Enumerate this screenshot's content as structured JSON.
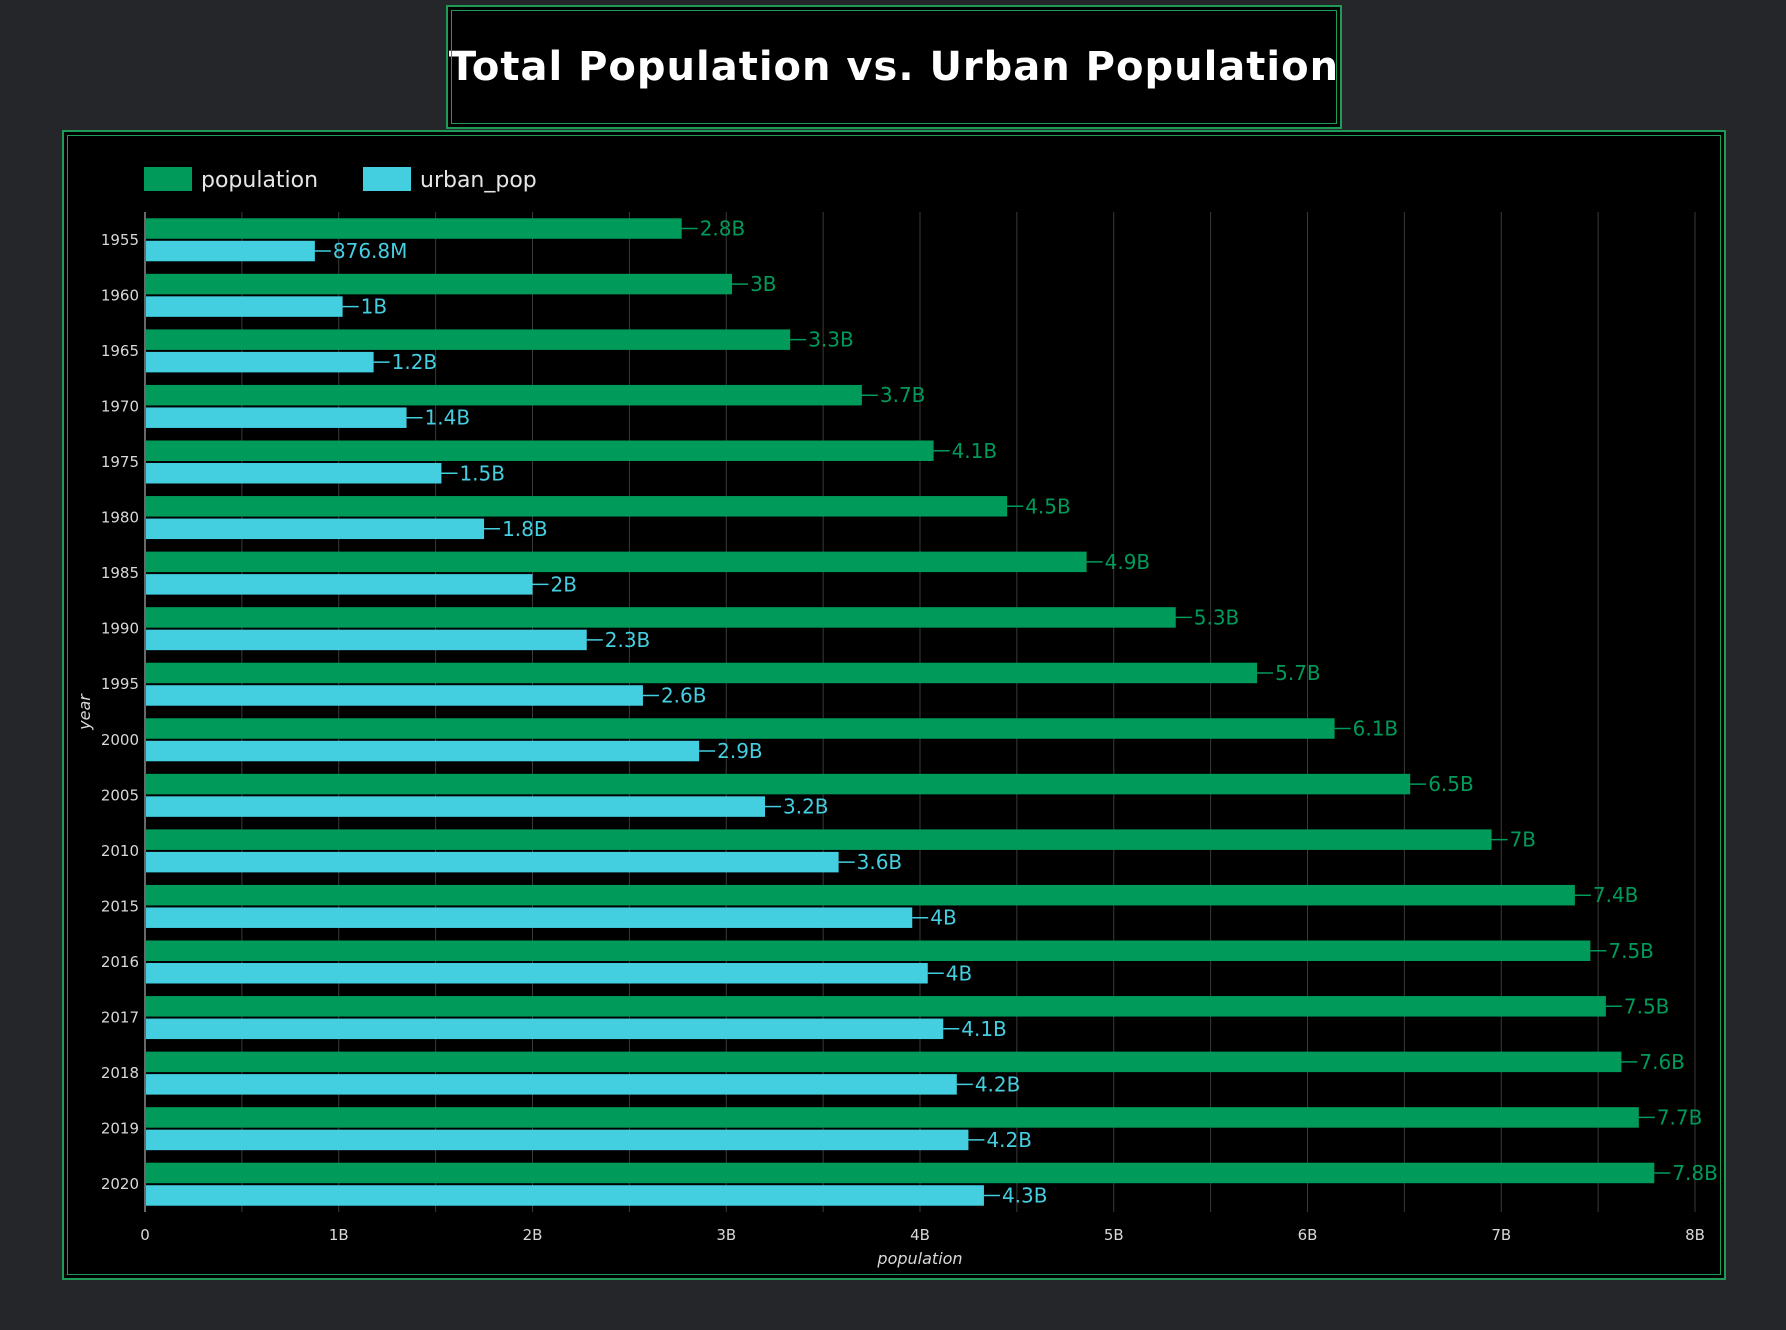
{
  "title": "Total Population vs. Urban Population",
  "colors": {
    "population": "#009b5a",
    "urban_pop": "#44cfe0",
    "grid": "#3a3a3a",
    "axis_text": "#d8d8d8",
    "background": "#000000"
  },
  "chart_data": {
    "type": "bar",
    "orientation": "horizontal",
    "title": "Total Population vs. Urban Population",
    "xlabel": "population",
    "ylabel": "year",
    "xlim": [
      0,
      8000000000
    ],
    "x_ticks": [
      {
        "value": 0,
        "label": "0"
      },
      {
        "value": 1000000000,
        "label": "1B"
      },
      {
        "value": 2000000000,
        "label": "2B"
      },
      {
        "value": 3000000000,
        "label": "3B"
      },
      {
        "value": 4000000000,
        "label": "4B"
      },
      {
        "value": 5000000000,
        "label": "5B"
      },
      {
        "value": 6000000000,
        "label": "6B"
      },
      {
        "value": 7000000000,
        "label": "7B"
      },
      {
        "value": 8000000000,
        "label": "8B"
      }
    ],
    "grid": true,
    "legend": "top-left",
    "categories": [
      "1955",
      "1960",
      "1965",
      "1970",
      "1975",
      "1980",
      "1985",
      "1990",
      "1995",
      "2000",
      "2005",
      "2010",
      "2015",
      "2016",
      "2017",
      "2018",
      "2019",
      "2020"
    ],
    "series": [
      {
        "name": "population",
        "values": [
          2770000000,
          3030000000,
          3330000000,
          3700000000,
          4070000000,
          4450000000,
          4860000000,
          5320000000,
          5740000000,
          6140000000,
          6530000000,
          6950000000,
          7380000000,
          7460000000,
          7540000000,
          7620000000,
          7710000000,
          7790000000
        ],
        "labels": [
          "2.8B",
          "3B",
          "3.3B",
          "3.7B",
          "4.1B",
          "4.5B",
          "4.9B",
          "5.3B",
          "5.7B",
          "6.1B",
          "6.5B",
          "7B",
          "7.4B",
          "7.5B",
          "7.5B",
          "7.6B",
          "7.7B",
          "7.8B"
        ]
      },
      {
        "name": "urban_pop",
        "values": [
          876800000,
          1020000000,
          1180000000,
          1350000000,
          1530000000,
          1750000000,
          2000000000,
          2280000000,
          2570000000,
          2860000000,
          3200000000,
          3580000000,
          3960000000,
          4040000000,
          4120000000,
          4190000000,
          4250000000,
          4330000000
        ],
        "labels": [
          "876.8M",
          "1B",
          "1.2B",
          "1.4B",
          "1.5B",
          "1.8B",
          "2B",
          "2.3B",
          "2.6B",
          "2.9B",
          "3.2B",
          "3.6B",
          "4B",
          "4B",
          "4.1B",
          "4.2B",
          "4.2B",
          "4.3B"
        ]
      }
    ]
  }
}
